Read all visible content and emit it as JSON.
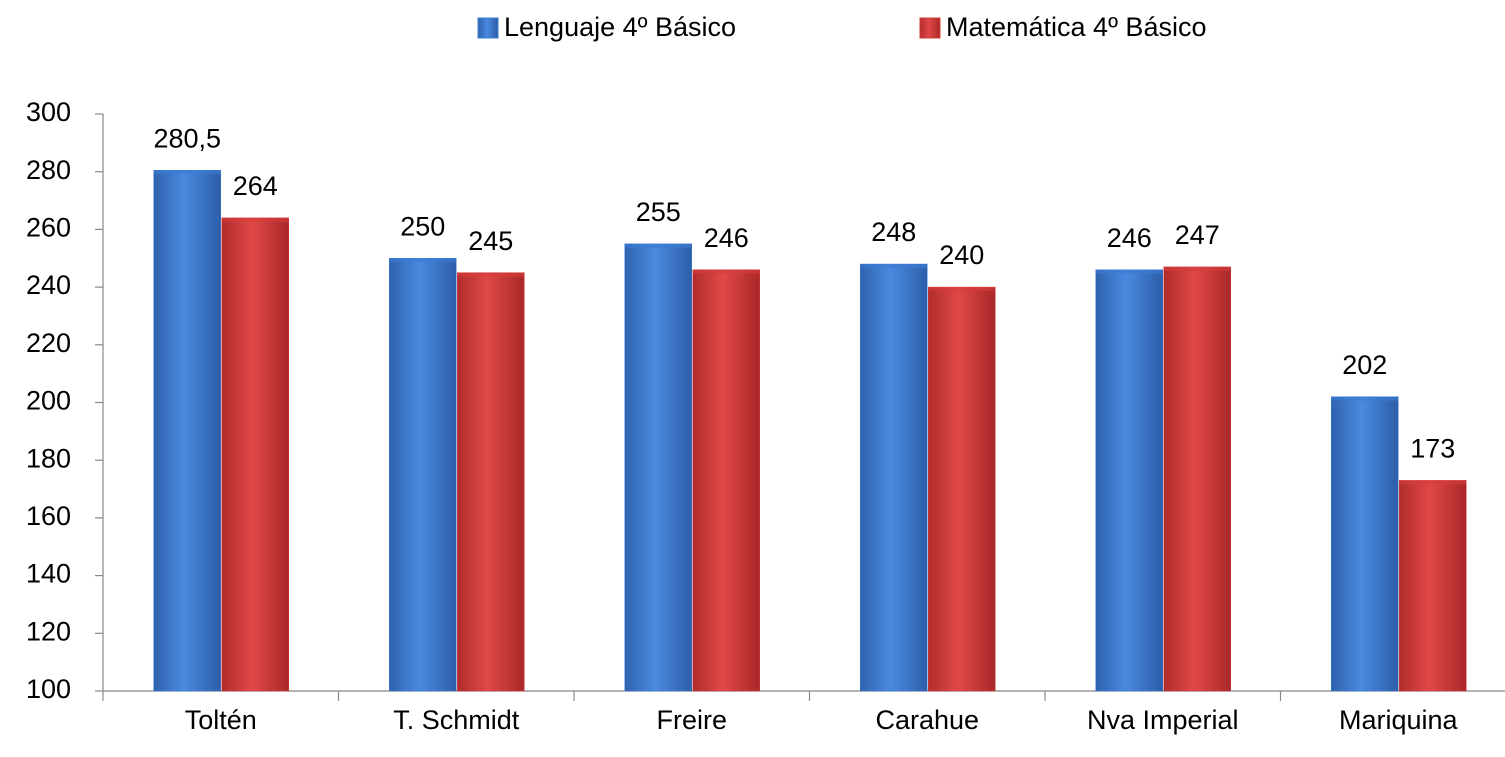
{
  "chart_data": {
    "type": "bar",
    "categories": [
      "Toltén",
      "T. Schmidt",
      "Freire",
      "Carahue",
      "Nva Imperial",
      "Mariquina"
    ],
    "series": [
      {
        "name": "Lenguaje 4º Básico",
        "color": "#3b7bd4",
        "values": [
          280.5,
          250,
          255,
          248,
          246,
          202
        ],
        "value_labels": [
          "280,5",
          "250",
          "255",
          "248",
          "246",
          "202"
        ]
      },
      {
        "name": "Matemática 4º Básico",
        "color": "#d63c3c",
        "values": [
          264,
          245,
          246,
          240,
          247,
          173
        ]
      }
    ],
    "ylim": [
      100,
      300
    ],
    "yticks": [
      100,
      120,
      140,
      160,
      180,
      200,
      220,
      240,
      260,
      280,
      300
    ]
  }
}
